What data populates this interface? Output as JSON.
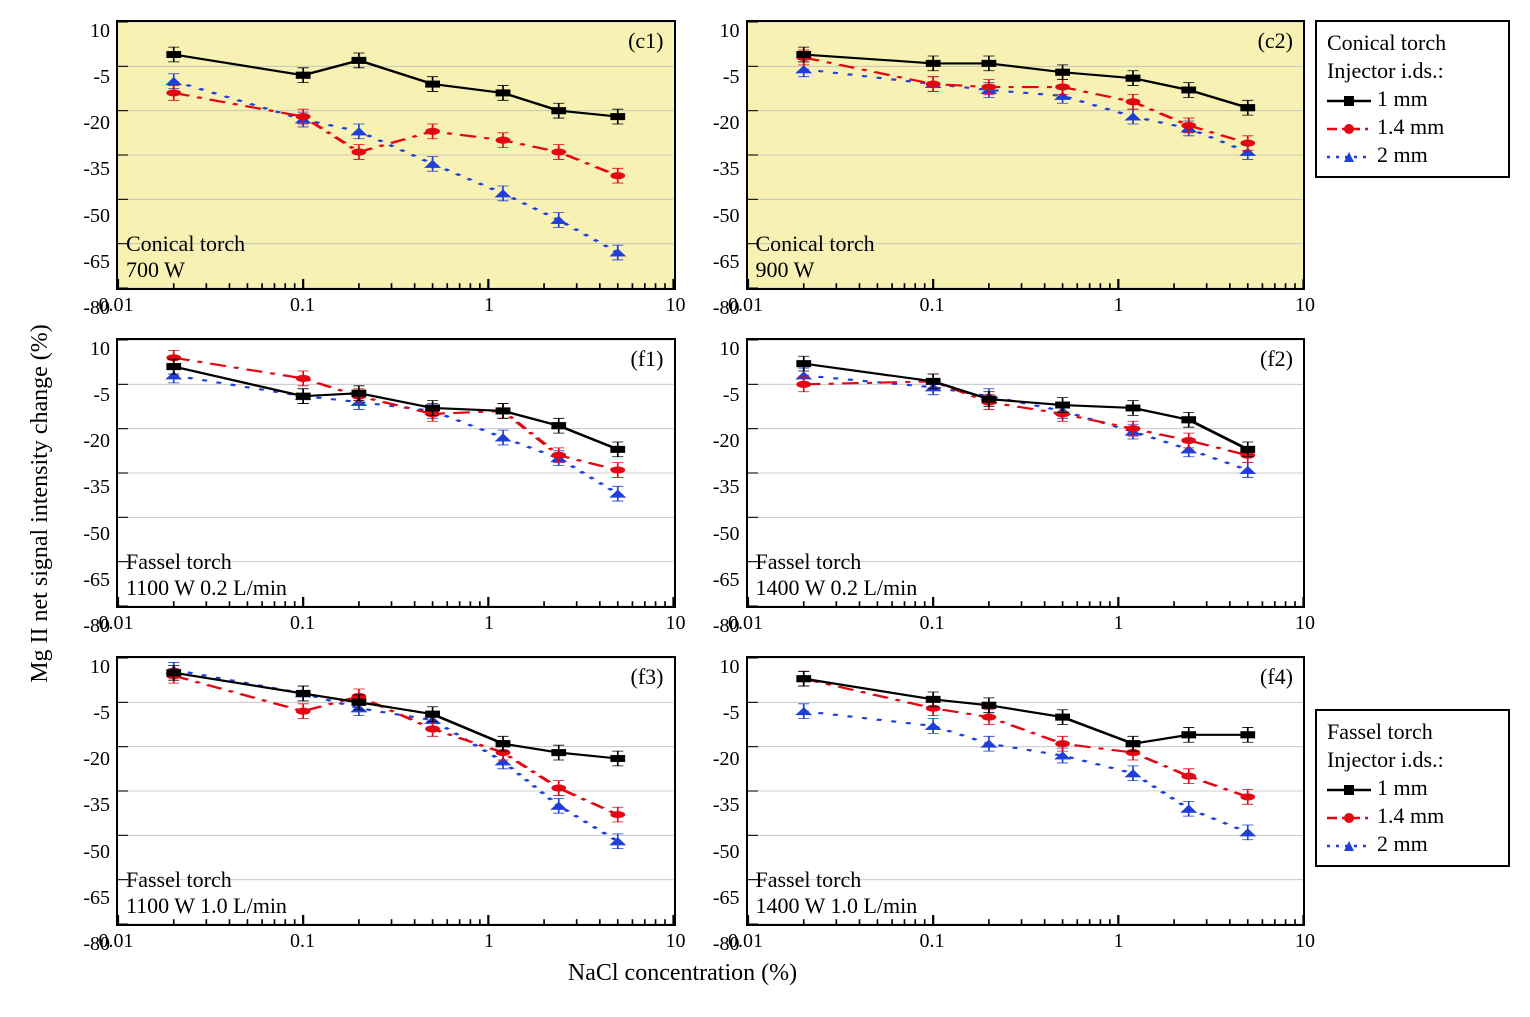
{
  "ylabel": "Mg II net signal intensity change (%)",
  "xlabel": "NaCl concentration (%)",
  "x_scale": "log",
  "xlim": [
    0.01,
    10
  ],
  "ylim": [
    -80,
    10
  ],
  "x_ticks": [
    0.01,
    0.1,
    1,
    10
  ],
  "x_tick_labels": [
    "0.01",
    "0.1",
    "1",
    "10"
  ],
  "y_ticks": [
    10,
    -5,
    -20,
    -35,
    -50,
    -65,
    -80
  ],
  "y_tick_labels": [
    "10",
    "-5",
    "-20",
    "-35",
    "-50",
    "-65",
    "-80"
  ],
  "grid_color": "#bfbfbf",
  "axis_color": "#000000",
  "label_fontsize_pt": 18,
  "tick_fontsize_pt": 15,
  "font_family": "Times New Roman",
  "x_values": [
    0.02,
    0.1,
    0.2,
    0.5,
    1.2,
    2.4,
    5
  ],
  "error_bar_half_height": 2.5,
  "series_style": {
    "s1mm": {
      "color": "#000000",
      "dash": "solid",
      "marker": "square",
      "marker_size": 8,
      "line_width": 2
    },
    "s1_4mm": {
      "color": "#e30613",
      "dash": "dashdot",
      "marker": "circle",
      "marker_size": 8,
      "line_width": 2
    },
    "s2mm": {
      "color": "#1f3fd8",
      "dash": "dot",
      "marker": "triangle",
      "marker_size": 9,
      "line_width": 2
    }
  },
  "legends": [
    {
      "attach_row": 0,
      "title_lines": [
        "Conical torch",
        "Injector i.ds.:"
      ],
      "items": [
        {
          "series": "s1mm",
          "label": "1 mm"
        },
        {
          "series": "s1_4mm",
          "label": "1.4 mm"
        },
        {
          "series": "s2mm",
          "label": "2 mm"
        }
      ]
    },
    {
      "attach_row": 2,
      "title_lines": [
        "Fassel torch",
        "Injector i.ds.:"
      ],
      "items": [
        {
          "series": "s1mm",
          "label": "1 mm"
        },
        {
          "series": "s1_4mm",
          "label": "1.4 mm"
        },
        {
          "series": "s2mm",
          "label": "2 mm"
        }
      ]
    }
  ],
  "panels": [
    {
      "tag": "(c1)",
      "background": "#f7f2b4",
      "note_lines": [
        "Conical torch",
        "700 W"
      ],
      "series": {
        "s1mm": [
          -1,
          -8,
          -3,
          -11,
          -14,
          -20,
          -22
        ],
        "s1_4mm": [
          -14,
          -22,
          -34,
          -27,
          -30,
          -34,
          -42
        ],
        "s2mm": [
          -10,
          -23,
          -27,
          -38,
          -48,
          -57,
          -68
        ]
      }
    },
    {
      "tag": "(c2)",
      "background": "#f7f2b4",
      "note_lines": [
        "Conical torch",
        "900 W"
      ],
      "series": {
        "s1mm": [
          -1,
          -4,
          -4,
          -7,
          -9,
          -13,
          -19
        ],
        "s1_4mm": [
          -2,
          -11,
          -12,
          -12,
          -17,
          -25,
          -31
        ],
        "s2mm": [
          -6,
          -11,
          -13,
          -15,
          -22,
          -26,
          -34
        ]
      }
    },
    {
      "tag": "(f1)",
      "background": "#ffffff",
      "note_lines": [
        "Fassel torch",
        "1100 W 0.2 L/min"
      ],
      "series": {
        "s1mm": [
          1,
          -9,
          -8,
          -13,
          -14,
          -19,
          -27
        ],
        "s1_4mm": [
          4,
          -3,
          -9,
          -15,
          -14,
          -29,
          -34
        ],
        "s2mm": [
          -2,
          -9,
          -11,
          -14,
          -23,
          -30,
          -42
        ]
      }
    },
    {
      "tag": "(f2)",
      "background": "#ffffff",
      "note_lines": [
        "Fassel torch",
        "1400 W 0.2 L/min"
      ],
      "series": {
        "s1mm": [
          2,
          -4,
          -10,
          -12,
          -13,
          -17,
          -27
        ],
        "s1_4mm": [
          -5,
          -4,
          -11,
          -15,
          -20,
          -24,
          -29
        ],
        "s2mm": [
          -2,
          -6,
          -9,
          -14,
          -21,
          -27,
          -34
        ]
      }
    },
    {
      "tag": "(f3)",
      "background": "#ffffff",
      "note_lines": [
        "Fassel torch",
        "1100 W 1.0 L/min"
      ],
      "series": {
        "s1mm": [
          5,
          -2,
          -5,
          -9,
          -19,
          -22,
          -24
        ],
        "s1_4mm": [
          4,
          -8,
          -3,
          -14,
          -22,
          -34,
          -43
        ],
        "s2mm": [
          6,
          -2,
          -7,
          -11,
          -25,
          -40,
          -52
        ]
      }
    },
    {
      "tag": "(f4)",
      "background": "#ffffff",
      "note_lines": [
        "Fassel torch",
        "1400 W 1.0 L/min"
      ],
      "series": {
        "s1mm": [
          3,
          -4,
          -6,
          -10,
          -19,
          -16,
          -16
        ],
        "s1_4mm": [
          3,
          -7,
          -10,
          -19,
          -22,
          -30,
          -37
        ],
        "s2mm": [
          -8,
          -13,
          -19,
          -23,
          -29,
          -41,
          -49
        ]
      }
    }
  ]
}
